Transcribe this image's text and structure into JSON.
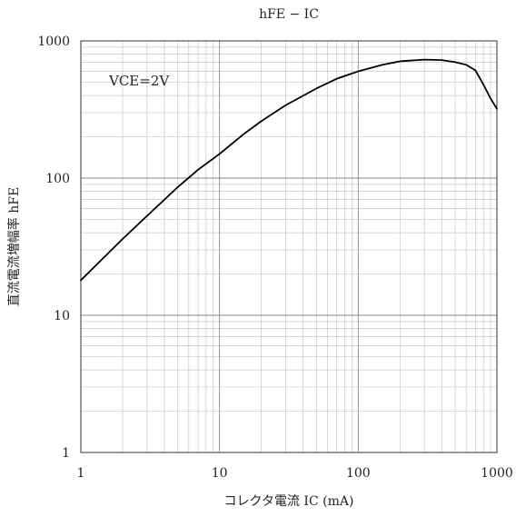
{
  "chart_data": {
    "type": "line",
    "title": "hFE − IC",
    "xlabel": "コレクタ電流 IC (mA)",
    "ylabel": "直流電流増幅率 hFE",
    "x_scale": "log",
    "y_scale": "log",
    "xlim": [
      1,
      1000
    ],
    "ylim": [
      1,
      1000
    ],
    "x_ticks": [
      1,
      10,
      100,
      1000
    ],
    "x_tick_labels": [
      "1",
      "10",
      "100",
      "1000"
    ],
    "y_ticks": [
      1,
      10,
      100,
      1000
    ],
    "y_tick_labels": [
      "1",
      "10",
      "100",
      "1000"
    ],
    "grid": true,
    "annotation": "VCE=2V",
    "line_color": "#000000",
    "grid_color": "#c8c8c8",
    "grid_major_color": "#888888",
    "series": [
      {
        "x": [
          1,
          1.5,
          2,
          3,
          5,
          7,
          10,
          15,
          20,
          30,
          50,
          70,
          100,
          150,
          200,
          300,
          400,
          500,
          600,
          700,
          800,
          900,
          1000
        ],
        "y": [
          18,
          27,
          36,
          53,
          86,
          115,
          150,
          210,
          260,
          340,
          450,
          530,
          600,
          670,
          710,
          730,
          725,
          700,
          670,
          610,
          480,
          380,
          320
        ]
      }
    ]
  }
}
